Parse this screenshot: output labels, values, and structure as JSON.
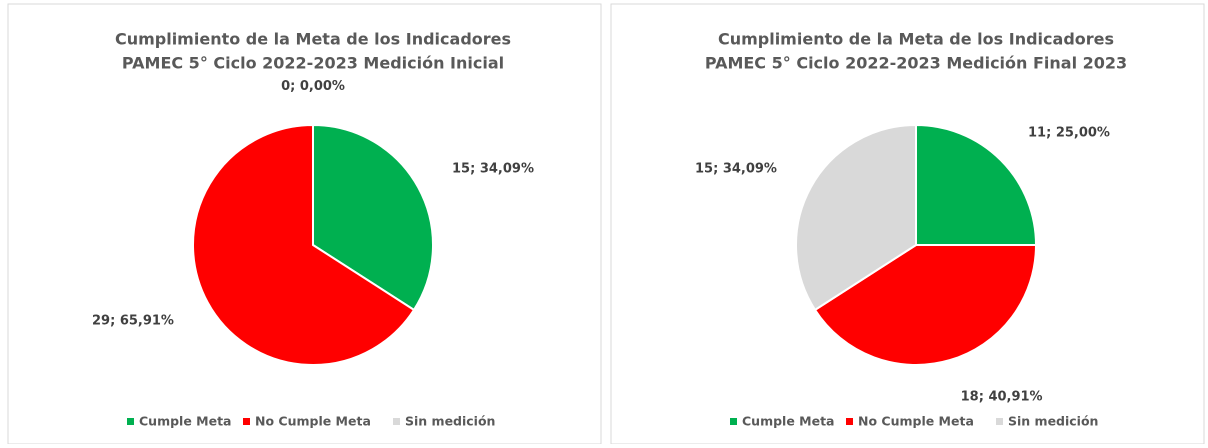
{
  "chart_data": [
    {
      "type": "pie",
      "title": [
        "Cumplimiento de la Meta de los Indicadores",
        "PAMEC 5° Ciclo 2022-2023 Medición Inicial"
      ],
      "categories": [
        "Cumple Meta",
        "No Cumple Meta",
        "Sin medición"
      ],
      "values": [
        15,
        29,
        0
      ],
      "value_labels": [
        "15; 34,09%",
        "29; 65,91%",
        "0; 0,00%"
      ],
      "colors": [
        "#00b050",
        "#ff0000",
        "#d9d9d9"
      ],
      "legend": "bottom"
    },
    {
      "type": "pie",
      "title": [
        "Cumplimiento de la Meta de los Indicadores",
        "PAMEC 5° Ciclo 2022-2023 Medición Final 2023"
      ],
      "categories": [
        "Cumple Meta",
        "No Cumple Meta",
        "Sin medición"
      ],
      "values": [
        11,
        18,
        15
      ],
      "value_labels": [
        "11; 25,00%",
        "18; 40,91%",
        "15; 34,09%"
      ],
      "colors": [
        "#00b050",
        "#ff0000",
        "#d9d9d9"
      ],
      "legend": "bottom"
    }
  ]
}
